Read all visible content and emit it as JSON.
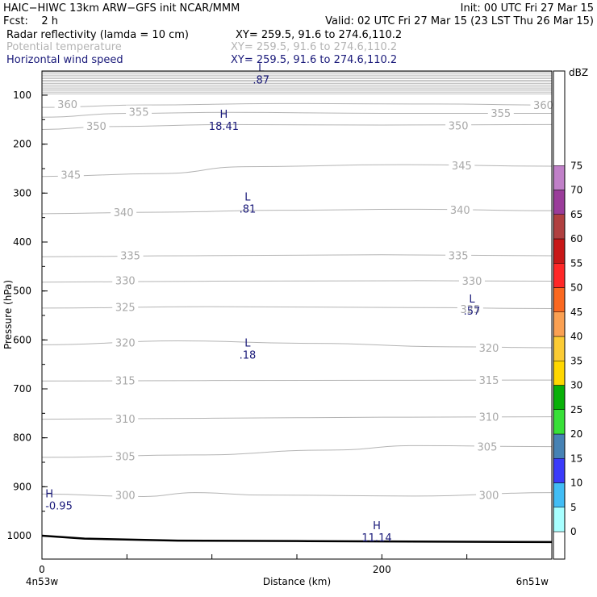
{
  "header": {
    "line1_left": "HAIC−HIWC 13km ARW−GFS init    NCAR/MMM",
    "line1_right": "Init: 00 UTC Fri 27 Mar 15",
    "fcst_label": "Fcst:",
    "fcst_value": "2 h",
    "valid": "Valid: 02 UTC Fri 27 Mar 15 (23 LST Thu 26 Mar 15)",
    "fields": [
      {
        "name": "Radar reflectivity (lamda = 10 cm)",
        "xy": "XY= 259.5, 91.6 to 274.6,110.2",
        "color": "#000000"
      },
      {
        "name": "Potential temperature",
        "xy": "XY= 259.5, 91.6 to 274.6,110.2",
        "color": "#b4b4b4"
      },
      {
        "name": "Horizontal wind speed",
        "xy": "XY= 259.5, 91.6 to 274.6,110.2",
        "color": "#00008b"
      }
    ]
  },
  "chart_data": {
    "type": "cross-section",
    "ylabel": "Pressure (hPa)",
    "xlabel": "Distance (km)",
    "x_ticks": [
      0,
      200
    ],
    "x_range": [
      0,
      300
    ],
    "y_ticks": [
      100,
      200,
      300,
      400,
      500,
      600,
      700,
      800,
      900,
      1000
    ],
    "y_range_hPa": [
      1045,
      50
    ],
    "x_endpoints": {
      "left": "4n53w",
      "right": "6n51w"
    },
    "theta_contours": [
      {
        "value": 360,
        "labels": [
          {
            "x": 15,
            "p": 118
          },
          {
            "x": 295,
            "p": 120
          }
        ],
        "points": [
          [
            0,
            125
          ],
          [
            60,
            120
          ],
          [
            140,
            117
          ],
          [
            230,
            118
          ],
          [
            300,
            120
          ]
        ]
      },
      {
        "value": 355,
        "labels": [
          {
            "x": 57,
            "p": 134
          },
          {
            "x": 270,
            "p": 136
          }
        ],
        "points": [
          [
            0,
            145
          ],
          [
            50,
            137
          ],
          [
            110,
            135
          ],
          [
            200,
            137
          ],
          [
            300,
            137
          ]
        ]
      },
      {
        "value": 350,
        "labels": [
          {
            "x": 32,
            "p": 163
          },
          {
            "x": 245,
            "p": 162
          }
        ],
        "points": [
          [
            0,
            170
          ],
          [
            40,
            164
          ],
          [
            110,
            160
          ],
          [
            200,
            161
          ],
          [
            300,
            160
          ]
        ]
      },
      {
        "value": 345,
        "labels": [
          {
            "x": 17,
            "p": 262
          },
          {
            "x": 247,
            "p": 243
          }
        ],
        "points": [
          [
            0,
            266
          ],
          [
            70,
            260
          ],
          [
            120,
            246
          ],
          [
            210,
            242
          ],
          [
            300,
            245
          ]
        ]
      },
      {
        "value": 340,
        "labels": [
          {
            "x": 48,
            "p": 339
          },
          {
            "x": 246,
            "p": 334
          }
        ],
        "points": [
          [
            0,
            342
          ],
          [
            70,
            339
          ],
          [
            140,
            335
          ],
          [
            220,
            333
          ],
          [
            300,
            336
          ]
        ]
      },
      {
        "value": 335,
        "labels": [
          {
            "x": 52,
            "p": 427
          },
          {
            "x": 245,
            "p": 427
          }
        ],
        "points": [
          [
            0,
            430
          ],
          [
            90,
            428
          ],
          [
            200,
            426
          ],
          [
            300,
            428
          ]
        ]
      },
      {
        "value": 330,
        "labels": [
          {
            "x": 49,
            "p": 478
          },
          {
            "x": 253,
            "p": 479
          }
        ],
        "points": [
          [
            0,
            482
          ],
          [
            100,
            480
          ],
          [
            220,
            479
          ],
          [
            300,
            480
          ]
        ]
      },
      {
        "value": 325,
        "labels": [
          {
            "x": 49,
            "p": 533
          },
          {
            "x": 252,
            "p": 537
          }
        ],
        "points": [
          [
            0,
            535
          ],
          [
            100,
            532
          ],
          [
            220,
            534
          ],
          [
            300,
            536
          ]
        ]
      },
      {
        "value": 320,
        "labels": [
          {
            "x": 49,
            "p": 605
          },
          {
            "x": 263,
            "p": 616
          }
        ],
        "points": [
          [
            0,
            610
          ],
          [
            80,
            602
          ],
          [
            160,
            607
          ],
          [
            240,
            614
          ],
          [
            300,
            616
          ]
        ]
      },
      {
        "value": 315,
        "labels": [
          {
            "x": 49,
            "p": 683
          },
          {
            "x": 263,
            "p": 682
          }
        ],
        "points": [
          [
            0,
            684
          ],
          [
            100,
            683
          ],
          [
            300,
            682
          ]
        ]
      },
      {
        "value": 310,
        "labels": [
          {
            "x": 49,
            "p": 761
          },
          {
            "x": 263,
            "p": 757
          }
        ],
        "points": [
          [
            0,
            762
          ],
          [
            100,
            760
          ],
          [
            200,
            758
          ],
          [
            300,
            757
          ]
        ]
      },
      {
        "value": 305,
        "labels": [
          {
            "x": 49,
            "p": 838
          },
          {
            "x": 262,
            "p": 818
          }
        ],
        "points": [
          [
            0,
            840
          ],
          [
            90,
            835
          ],
          [
            170,
            825
          ],
          [
            220,
            816
          ],
          [
            300,
            818
          ]
        ]
      },
      {
        "value": 300,
        "labels": [
          {
            "x": 49,
            "p": 917
          },
          {
            "x": 263,
            "p": 917
          }
        ],
        "points": [
          [
            0,
            915
          ],
          [
            60,
            920
          ],
          [
            90,
            912
          ],
          [
            130,
            917
          ],
          [
            220,
            919
          ],
          [
            300,
            912
          ]
        ]
      }
    ],
    "wind_extrema": [
      {
        "type": "L",
        "value": ".87",
        "x": 129,
        "p": 68
      },
      {
        "type": "H",
        "value": "18.41",
        "x": 107,
        "p": 163
      },
      {
        "type": "L",
        "value": ".81",
        "x": 121,
        "p": 332
      },
      {
        "type": "L",
        "value": ".57",
        "x": 253,
        "p": 540
      },
      {
        "type": "L",
        "value": ".18",
        "x": 121,
        "p": 630
      },
      {
        "type": "H",
        "value": "-0.95",
        "x": 2,
        "p": 938
      },
      {
        "type": "H",
        "value": "11.14",
        "x": 197,
        "p": 1003
      }
    ],
    "terrain": [
      [
        0,
        1000
      ],
      [
        25,
        1006
      ],
      [
        80,
        1010
      ],
      [
        150,
        1011
      ],
      [
        300,
        1013
      ]
    ],
    "colorbar": {
      "title": "dBZ",
      "levels": [
        0,
        5,
        10,
        15,
        20,
        25,
        30,
        35,
        40,
        45,
        50,
        55,
        60,
        65,
        70,
        75
      ],
      "colors": [
        "#ffffff",
        "#a8ffff",
        "#42bdf5",
        "#3b3bfa",
        "#4682b4",
        "#38e038",
        "#08b008",
        "#ffd700",
        "#fbcb34",
        "#faa052",
        "#fa6820",
        "#ff2828",
        "#c81818",
        "#b04040",
        "#9a3c9a",
        "#c080c8",
        "#ffffff"
      ]
    }
  }
}
